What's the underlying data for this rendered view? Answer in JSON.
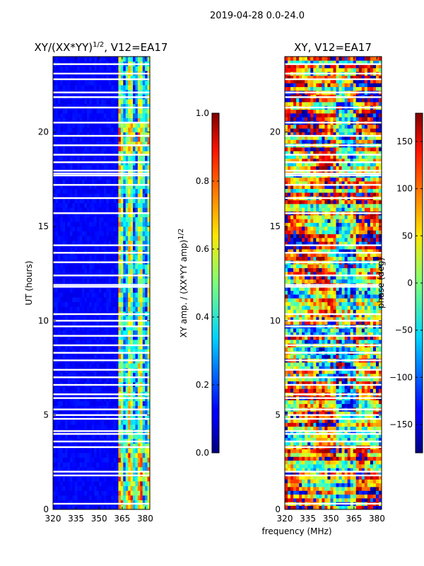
{
  "header": {
    "title": "2019-04-28 0.0-24.0"
  },
  "chart_data": [
    {
      "type": "heatmap",
      "title_main": "XY/(XX*YY)",
      "title_sup": "1/2",
      "title_rest": ", V12=EA17",
      "xlabel": "",
      "ylabel": "UT (hours)",
      "xlim": [
        320,
        383
      ],
      "ylim": [
        0,
        24
      ],
      "xticks": [
        320,
        335,
        350,
        365,
        380
      ],
      "yticks": [
        0,
        5,
        10,
        15,
        20
      ],
      "colorbar": {
        "label_main": "XY amp. / (XX*YY amp)",
        "label_sup": "1/2",
        "range": [
          0.0,
          1.0
        ],
        "ticks": [
          "0.0",
          "0.2",
          "0.4",
          "0.6",
          "0.8",
          "1.0"
        ],
        "tick_values": [
          0.0,
          0.2,
          0.4,
          0.6,
          0.8,
          1.0
        ]
      },
      "bright_band_mhz": [
        361,
        383
      ]
    },
    {
      "type": "heatmap",
      "title": "XY, V12=EA17",
      "xlabel": "frequency (MHz)",
      "ylabel": "",
      "xlim": [
        320,
        383
      ],
      "ylim": [
        0,
        24
      ],
      "xticks": [
        320,
        335,
        350,
        365,
        380
      ],
      "yticks": [
        0,
        5,
        10,
        15,
        20
      ],
      "colorbar": {
        "label": "phase (deg)",
        "range": [
          -180,
          180
        ],
        "ticks": [
          "150",
          "100",
          "50",
          "0",
          "−50",
          "−100",
          "−150"
        ],
        "tick_values": [
          150,
          100,
          50,
          0,
          -50,
          -100,
          -150
        ]
      }
    }
  ],
  "flagged_hours": [
    0.3,
    1.8,
    2.0,
    3.3,
    3.6,
    4.0,
    4.15,
    4.8,
    5.0,
    5.3,
    5.9,
    6.1,
    6.6,
    7.0,
    7.4,
    7.9,
    8.3,
    8.7,
    9.2,
    9.7,
    10.0,
    10.35,
    11.8,
    11.9,
    12.4,
    13.1,
    13.6,
    14.0,
    15.7,
    16.5,
    17.2,
    17.7,
    17.8,
    17.95,
    18.4,
    18.8,
    19.3,
    19.8,
    20.5,
    21.3,
    21.85,
    22.1,
    22.8,
    23.1,
    23.6
  ]
}
